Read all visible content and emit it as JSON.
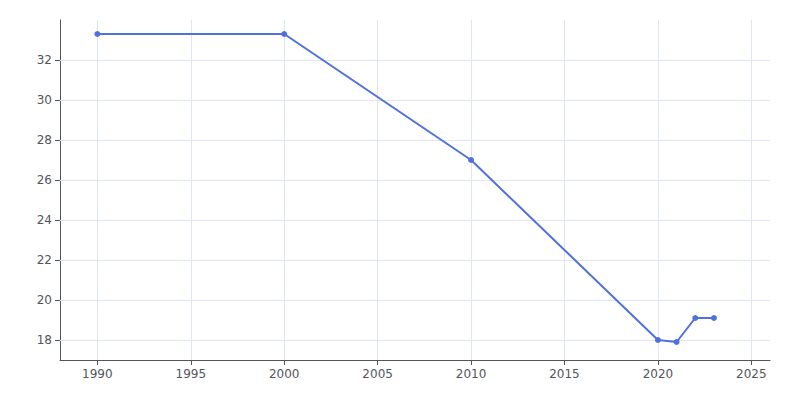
{
  "chart_data": {
    "type": "line",
    "x": [
      1990,
      2000,
      2010,
      2020,
      2021,
      2022,
      2023
    ],
    "values": [
      33.3,
      33.3,
      27.0,
      18.0,
      17.9,
      19.1,
      19.1
    ],
    "xlim": [
      1988,
      2026
    ],
    "xticks": [
      1990,
      1995,
      2000,
      2005,
      2010,
      2015,
      2020,
      2025
    ],
    "ylim": [
      17,
      34
    ],
    "yticks": [
      18,
      20,
      22,
      24,
      26,
      28,
      30,
      32
    ],
    "grid": true,
    "marker": "circle"
  }
}
